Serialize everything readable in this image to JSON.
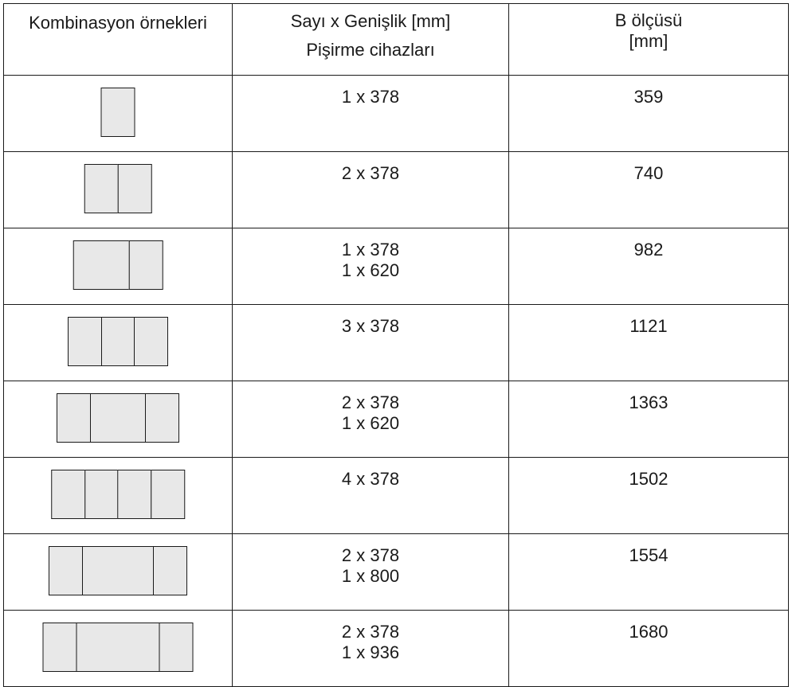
{
  "headers": {
    "col1": "Kombinasyon örnekleri",
    "col2_line1": "Sayı x Genişlik [mm]",
    "col2_line2": "Pişirme cihazları",
    "col3_line1": "B ölçüsü",
    "col3_line2": "[mm]"
  },
  "rows": [
    {
      "units": [
        378
      ],
      "width_lines": [
        "1 x 378"
      ],
      "b": "359"
    },
    {
      "units": [
        378,
        378
      ],
      "width_lines": [
        "2 x 378"
      ],
      "b": "740"
    },
    {
      "units": [
        620,
        378
      ],
      "width_lines": [
        "1 x 378",
        "1 x 620"
      ],
      "b": "982"
    },
    {
      "units": [
        378,
        378,
        378
      ],
      "width_lines": [
        "3 x 378"
      ],
      "b": "1121"
    },
    {
      "units": [
        378,
        620,
        378
      ],
      "width_lines": [
        "2 x 378",
        "1 x 620"
      ],
      "b": "1363"
    },
    {
      "units": [
        378,
        378,
        378,
        378
      ],
      "width_lines": [
        "4 x 378"
      ],
      "b": "1502"
    },
    {
      "units": [
        378,
        800,
        378
      ],
      "width_lines": [
        "2 x 378",
        "1 x 800"
      ],
      "b": "1554"
    },
    {
      "units": [
        378,
        936,
        378
      ],
      "width_lines": [
        "2 x 378",
        "1 x 936"
      ],
      "b": "1680"
    }
  ]
}
